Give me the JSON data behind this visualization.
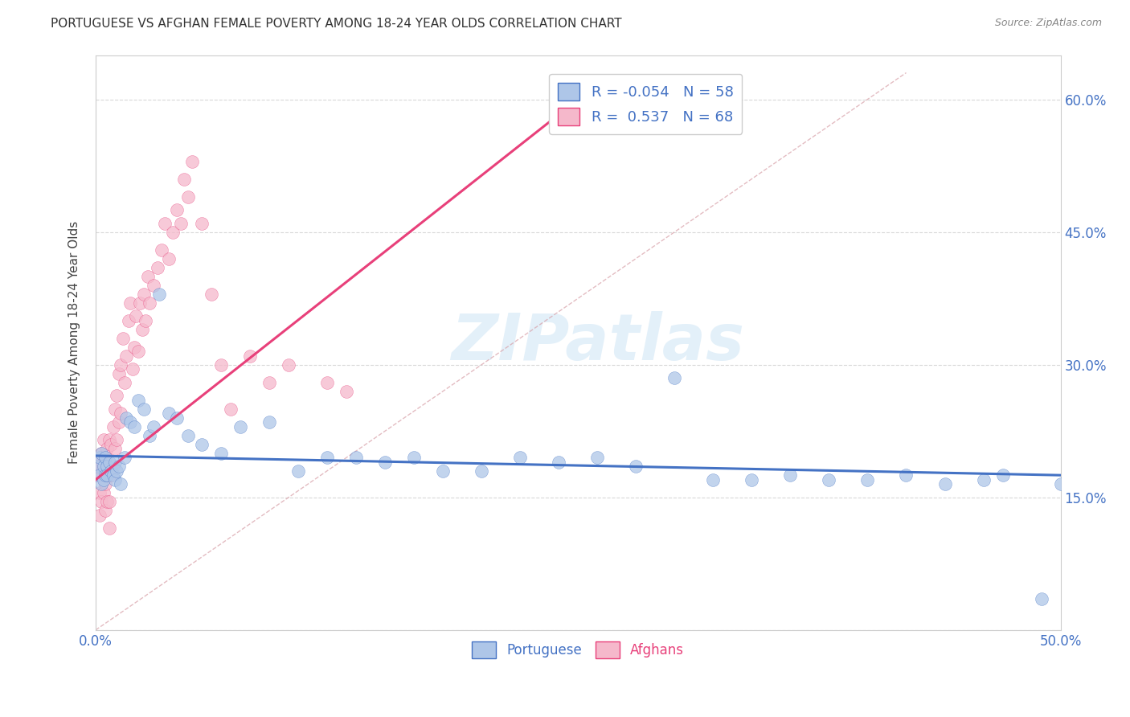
{
  "title": "PORTUGUESE VS AFGHAN FEMALE POVERTY AMONG 18-24 YEAR OLDS CORRELATION CHART",
  "source": "Source: ZipAtlas.com",
  "ylabel": "Female Poverty Among 18-24 Year Olds",
  "xlabel": "",
  "xlim": [
    0.0,
    0.5
  ],
  "ylim": [
    0.0,
    0.65
  ],
  "x_ticks": [
    0.0,
    0.1,
    0.2,
    0.3,
    0.4,
    0.5
  ],
  "x_tick_labels": [
    "0.0%",
    "",
    "",
    "",
    "",
    "50.0%"
  ],
  "y_ticks": [
    0.0,
    0.15,
    0.3,
    0.45,
    0.6
  ],
  "y_tick_labels": [
    "",
    "15.0%",
    "30.0%",
    "45.0%",
    "60.0%"
  ],
  "portuguese_R": -0.054,
  "portuguese_N": 58,
  "afghan_R": 0.537,
  "afghan_N": 68,
  "portuguese_color": "#aec6e8",
  "afghan_color": "#f5b8cb",
  "portuguese_line_color": "#4472c4",
  "afghan_line_color": "#e8407a",
  "ref_line_color": "#d8a0a8",
  "background_color": "#ffffff",
  "grid_color": "#d8d8d8",
  "watermark": "ZIPatlas",
  "portuguese_x": [
    0.001,
    0.002,
    0.002,
    0.003,
    0.003,
    0.004,
    0.004,
    0.005,
    0.005,
    0.006,
    0.006,
    0.007,
    0.008,
    0.009,
    0.01,
    0.01,
    0.011,
    0.012,
    0.013,
    0.015,
    0.016,
    0.018,
    0.02,
    0.022,
    0.025,
    0.028,
    0.03,
    0.033,
    0.038,
    0.042,
    0.048,
    0.055,
    0.065,
    0.075,
    0.09,
    0.105,
    0.12,
    0.135,
    0.15,
    0.165,
    0.18,
    0.2,
    0.22,
    0.24,
    0.26,
    0.28,
    0.3,
    0.32,
    0.34,
    0.36,
    0.38,
    0.4,
    0.42,
    0.44,
    0.46,
    0.47,
    0.49,
    0.5
  ],
  "portuguese_y": [
    0.185,
    0.195,
    0.175,
    0.2,
    0.165,
    0.185,
    0.17,
    0.195,
    0.175,
    0.185,
    0.175,
    0.19,
    0.18,
    0.175,
    0.19,
    0.17,
    0.18,
    0.185,
    0.165,
    0.195,
    0.24,
    0.235,
    0.23,
    0.26,
    0.25,
    0.22,
    0.23,
    0.38,
    0.245,
    0.24,
    0.22,
    0.21,
    0.2,
    0.23,
    0.235,
    0.18,
    0.195,
    0.195,
    0.19,
    0.195,
    0.18,
    0.18,
    0.195,
    0.19,
    0.195,
    0.185,
    0.285,
    0.17,
    0.17,
    0.175,
    0.17,
    0.17,
    0.175,
    0.165,
    0.17,
    0.175,
    0.035,
    0.165
  ],
  "afghan_x": [
    0.001,
    0.001,
    0.002,
    0.002,
    0.002,
    0.003,
    0.003,
    0.003,
    0.004,
    0.004,
    0.004,
    0.005,
    0.005,
    0.005,
    0.006,
    0.006,
    0.006,
    0.007,
    0.007,
    0.007,
    0.007,
    0.008,
    0.008,
    0.009,
    0.009,
    0.01,
    0.01,
    0.011,
    0.011,
    0.012,
    0.012,
    0.013,
    0.013,
    0.014,
    0.015,
    0.016,
    0.017,
    0.018,
    0.019,
    0.02,
    0.021,
    0.022,
    0.023,
    0.024,
    0.025,
    0.026,
    0.027,
    0.028,
    0.03,
    0.032,
    0.034,
    0.036,
    0.038,
    0.04,
    0.042,
    0.044,
    0.046,
    0.048,
    0.05,
    0.055,
    0.06,
    0.065,
    0.07,
    0.08,
    0.09,
    0.1,
    0.12,
    0.13
  ],
  "afghan_y": [
    0.19,
    0.175,
    0.185,
    0.155,
    0.13,
    0.2,
    0.175,
    0.145,
    0.215,
    0.185,
    0.155,
    0.195,
    0.165,
    0.135,
    0.205,
    0.175,
    0.145,
    0.215,
    0.175,
    0.145,
    0.115,
    0.21,
    0.175,
    0.23,
    0.185,
    0.25,
    0.205,
    0.265,
    0.215,
    0.29,
    0.235,
    0.3,
    0.245,
    0.33,
    0.28,
    0.31,
    0.35,
    0.37,
    0.295,
    0.32,
    0.355,
    0.315,
    0.37,
    0.34,
    0.38,
    0.35,
    0.4,
    0.37,
    0.39,
    0.41,
    0.43,
    0.46,
    0.42,
    0.45,
    0.475,
    0.46,
    0.51,
    0.49,
    0.53,
    0.46,
    0.38,
    0.3,
    0.25,
    0.31,
    0.28,
    0.3,
    0.28,
    0.27
  ]
}
